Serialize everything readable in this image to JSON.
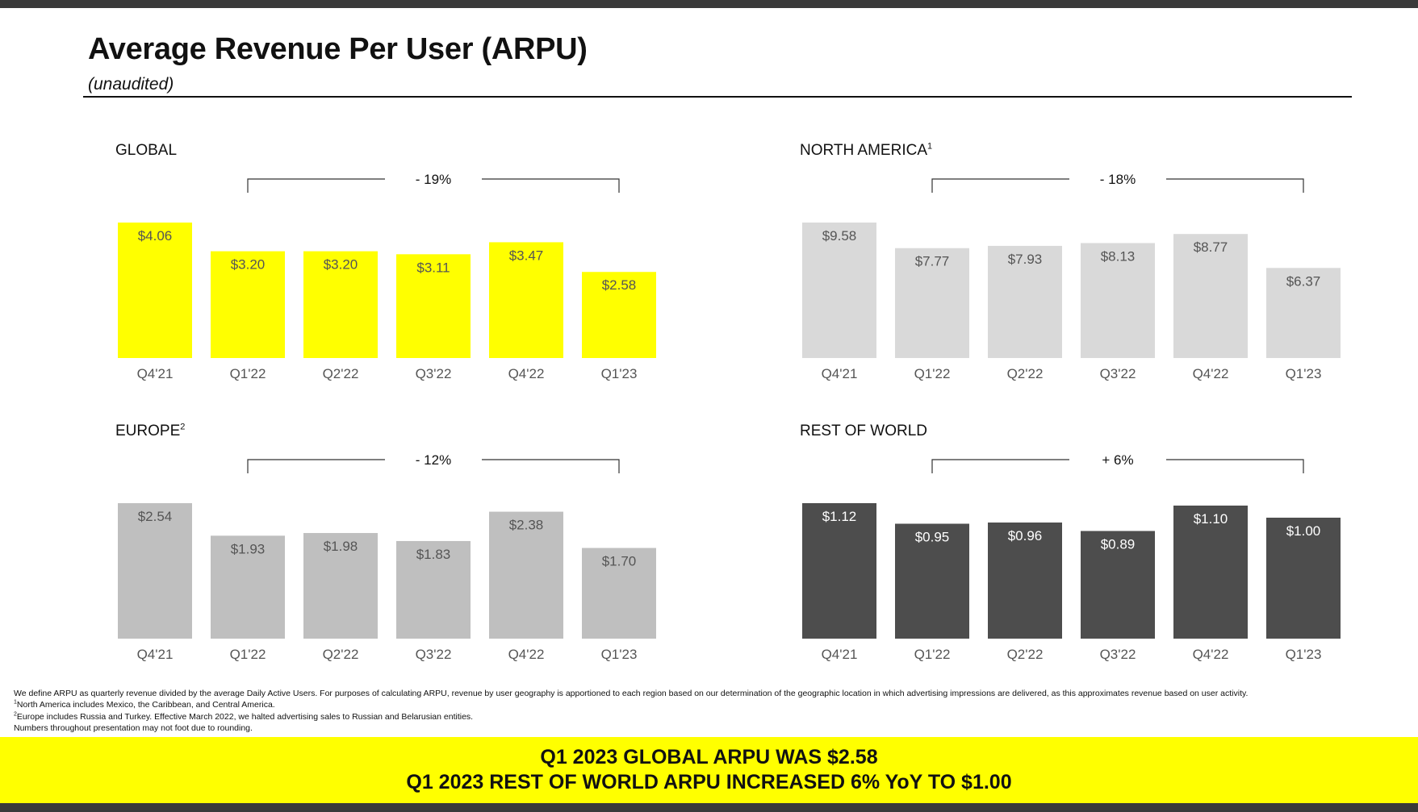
{
  "header": {
    "title": "Average Revenue Per User (ARPU)",
    "subtitle": "(unaudited)"
  },
  "chart_data": [
    {
      "type": "bar",
      "id": "global",
      "title": "GLOBAL",
      "footnote_marker": "",
      "categories": [
        "Q4'21",
        "Q1'22",
        "Q2'22",
        "Q3'22",
        "Q4'22",
        "Q1'23"
      ],
      "values": [
        4.06,
        3.2,
        3.2,
        3.11,
        3.47,
        2.58
      ],
      "labels": [
        "$4.06",
        "$3.20",
        "$3.20",
        "$3.11",
        "$3.47",
        "$2.58"
      ],
      "change_label": "- 19%",
      "bar_color": "#ffff00",
      "label_color": "#555555",
      "ylim": [
        0,
        4.06
      ]
    },
    {
      "type": "bar",
      "id": "north-america",
      "title": "NORTH AMERICA",
      "footnote_marker": "1",
      "categories": [
        "Q4'21",
        "Q1'22",
        "Q2'22",
        "Q3'22",
        "Q4'22",
        "Q1'23"
      ],
      "values": [
        9.58,
        7.77,
        7.93,
        8.13,
        8.77,
        6.37
      ],
      "labels": [
        "$9.58",
        "$7.77",
        "$7.93",
        "$8.13",
        "$8.77",
        "$6.37"
      ],
      "change_label": "- 18%",
      "bar_color": "#d9d9d9",
      "label_color": "#555555",
      "ylim": [
        0,
        9.58
      ]
    },
    {
      "type": "bar",
      "id": "europe",
      "title": "EUROPE",
      "footnote_marker": "2",
      "categories": [
        "Q4'21",
        "Q1'22",
        "Q2'22",
        "Q3'22",
        "Q4'22",
        "Q1'23"
      ],
      "values": [
        2.54,
        1.93,
        1.98,
        1.83,
        2.38,
        1.7
      ],
      "labels": [
        "$2.54",
        "$1.93",
        "$1.98",
        "$1.83",
        "$2.38",
        "$1.70"
      ],
      "change_label": "- 12%",
      "bar_color": "#bfbfbf",
      "label_color": "#555555",
      "ylim": [
        0,
        2.54
      ]
    },
    {
      "type": "bar",
      "id": "rest-of-world",
      "title": "REST OF WORLD",
      "footnote_marker": "",
      "categories": [
        "Q4'21",
        "Q1'22",
        "Q2'22",
        "Q3'22",
        "Q4'22",
        "Q1'23"
      ],
      "values": [
        1.12,
        0.95,
        0.96,
        0.89,
        1.1,
        1.0
      ],
      "labels": [
        "$1.12",
        "$0.95",
        "$0.96",
        "$0.89",
        "$1.10",
        "$1.00"
      ],
      "change_label": "+ 6%",
      "bar_color": "#4d4d4d",
      "label_color": "#ffffff",
      "ylim": [
        0,
        1.12
      ]
    }
  ],
  "footnotes": {
    "definition": "We define ARPU as quarterly revenue divided by the average Daily Active Users. For purposes of calculating ARPU, revenue by user geography is apportioned to each region based on our determination of the geographic location in which advertising impressions are delivered, as this approximates revenue based on user activity.",
    "note1_marker": "1",
    "note1": "North America includes Mexico, the Caribbean, and Central America.",
    "note2_marker": "2",
    "note2": "Europe includes Russia and Turkey. Effective March 2022, we halted advertising sales to Russian and Belarusian entities.",
    "rounding": "Numbers throughout presentation may not foot due to rounding."
  },
  "banner": {
    "line1": "Q1 2023 GLOBAL ARPU WAS $2.58",
    "line2": "Q1 2023 REST OF WORLD ARPU INCREASED 6% YoY TO $1.00"
  },
  "colors": {
    "accent_yellow": "#ffff00",
    "dark_bar": "#4d4d4d",
    "top_bar": "#3a3a3a"
  }
}
